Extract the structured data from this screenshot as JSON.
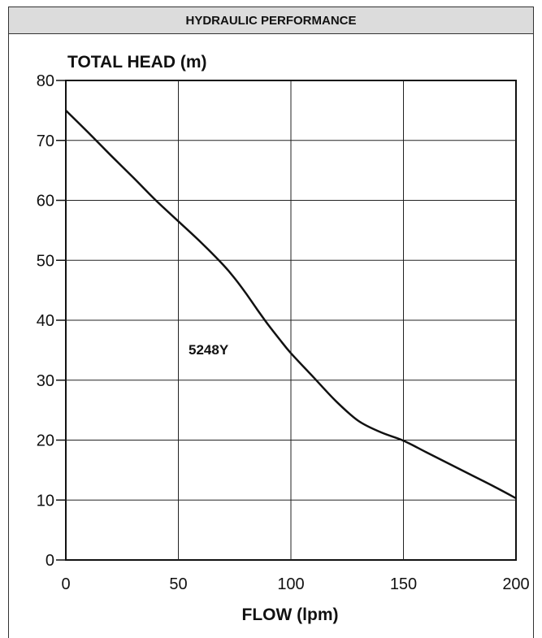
{
  "header": {
    "title": "HYDRAULIC PERFORMANCE"
  },
  "chart_data": {
    "type": "line",
    "title": "",
    "xlabel": "FLOW (lpm)",
    "ylabel": "TOTAL HEAD (m)",
    "xlim": [
      0,
      200
    ],
    "ylim": [
      0,
      80
    ],
    "xticks": [
      0,
      50,
      100,
      150,
      200
    ],
    "yticks": [
      0,
      10,
      20,
      30,
      40,
      50,
      60,
      70,
      80
    ],
    "grid": true,
    "series": [
      {
        "name": "5248Y",
        "color": "#111111",
        "x": [
          0,
          10,
          20,
          30,
          40,
          50,
          60,
          70,
          75,
          80,
          85,
          90,
          95,
          100,
          110,
          120,
          130,
          140,
          150,
          160,
          170,
          180,
          190,
          200
        ],
        "y": [
          75,
          71.3,
          67.5,
          63.8,
          60,
          56.5,
          53,
          49.2,
          47,
          44.5,
          41.8,
          39.2,
          36.8,
          34.5,
          30.5,
          26.5,
          23.2,
          21.3,
          19.9,
          18,
          16.1,
          14.2,
          12.3,
          10.3
        ]
      }
    ]
  }
}
